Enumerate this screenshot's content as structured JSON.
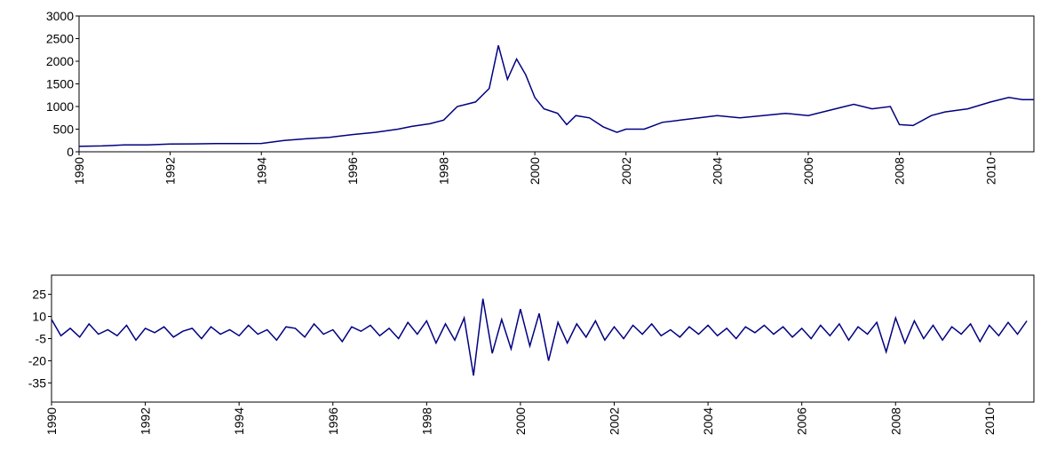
{
  "chart_data": [
    {
      "type": "line",
      "color": "#000080",
      "x": [
        1990,
        1990.5,
        1991,
        1991.5,
        1992,
        1992.5,
        1993,
        1993.5,
        1994,
        1994.5,
        1995,
        1995.5,
        1996,
        1996.5,
        1997,
        1997.3,
        1997.7,
        1998,
        1998.3,
        1998.7,
        1999,
        1999.2,
        1999.4,
        1999.6,
        1999.8,
        2000,
        2000.2,
        2000.5,
        2000.7,
        2000.9,
        2001.2,
        2001.5,
        2001.8,
        2002,
        2002.4,
        2002.8,
        2003.2,
        2003.6,
        2004,
        2004.5,
        2005,
        2005.5,
        2006,
        2006.4,
        2006.8,
        2007,
        2007.4,
        2007.8,
        2008,
        2008.3,
        2008.7,
        2009,
        2009.5,
        2010,
        2010.4,
        2010.7,
        2010.95
      ],
      "values": [
        120,
        130,
        150,
        150,
        170,
        175,
        180,
        180,
        185,
        250,
        290,
        320,
        380,
        430,
        500,
        560,
        620,
        700,
        1000,
        1100,
        1400,
        2350,
        1600,
        2050,
        1700,
        1200,
        950,
        850,
        600,
        800,
        750,
        550,
        430,
        500,
        500,
        650,
        700,
        750,
        800,
        750,
        800,
        850,
        800,
        900,
        1000,
        1050,
        950,
        1000,
        600,
        580,
        800,
        880,
        950,
        1100,
        1200,
        1150,
        1150
      ],
      "xlim": [
        1990,
        2010.95
      ],
      "xticks": [
        1990,
        1992,
        1994,
        1996,
        1998,
        2000,
        2002,
        2004,
        2006,
        2008,
        2010
      ],
      "ylim": [
        0,
        3000
      ],
      "yticks": [
        0,
        500,
        1000,
        1500,
        2000,
        2500,
        3000
      ]
    },
    {
      "type": "line",
      "color": "#000080",
      "x": [
        1990,
        1990.2,
        1990.4,
        1990.6,
        1990.8,
        1991,
        1991.2,
        1991.4,
        1991.6,
        1991.8,
        1992,
        1992.2,
        1992.4,
        1992.6,
        1992.8,
        1993,
        1993.2,
        1993.4,
        1993.6,
        1993.8,
        1994,
        1994.2,
        1994.4,
        1994.6,
        1994.8,
        1995,
        1995.2,
        1995.4,
        1995.6,
        1995.8,
        1996,
        1996.2,
        1996.4,
        1996.6,
        1996.8,
        1997,
        1997.2,
        1997.4,
        1997.6,
        1997.8,
        1998,
        1998.2,
        1998.4,
        1998.6,
        1998.8,
        1999,
        1999.2,
        1999.4,
        1999.6,
        1999.8,
        2000,
        2000.2,
        2000.4,
        2000.6,
        2000.8,
        2001,
        2001.2,
        2001.4,
        2001.6,
        2001.8,
        2002,
        2002.2,
        2002.4,
        2002.6,
        2002.8,
        2003,
        2003.2,
        2003.4,
        2003.6,
        2003.8,
        2004,
        2004.2,
        2004.4,
        2004.6,
        2004.8,
        2005,
        2005.2,
        2005.4,
        2005.6,
        2005.8,
        2006,
        2006.2,
        2006.4,
        2006.6,
        2006.8,
        2007,
        2007.2,
        2007.4,
        2007.6,
        2007.8,
        2008,
        2008.2,
        2008.4,
        2008.6,
        2008.8,
        2009,
        2009.2,
        2009.4,
        2009.6,
        2009.8,
        2010,
        2010.2,
        2010.4,
        2010.6,
        2010.8
      ],
      "values": [
        8,
        -3,
        2,
        -4,
        5,
        -2,
        1,
        -3,
        4,
        -6,
        2,
        -1,
        3,
        -4,
        0,
        2,
        -5,
        3,
        -2,
        1,
        -3,
        4,
        -2,
        1,
        -6,
        3,
        2,
        -4,
        5,
        -2,
        1,
        -7,
        3,
        0,
        4,
        -3,
        2,
        -5,
        6,
        -2,
        7,
        -8,
        5,
        -6,
        9,
        -30,
        22,
        -15,
        8,
        -12,
        15,
        -10,
        12,
        -20,
        6,
        -8,
        5,
        -4,
        7,
        -6,
        3,
        -5,
        4,
        -2,
        5,
        -3,
        1,
        -4,
        3,
        -2,
        4,
        -3,
        2,
        -5,
        3,
        -1,
        4,
        -2,
        3,
        -4,
        2,
        -5,
        4,
        -3,
        5,
        -6,
        3,
        -2,
        6,
        -14,
        9,
        -8,
        7,
        -5,
        4,
        -6,
        3,
        -2,
        5,
        -7,
        4,
        -3,
        6,
        -2,
        7
      ],
      "xlim": [
        1990,
        2010.95
      ],
      "xticks": [
        1990,
        1992,
        1994,
        1996,
        1998,
        2000,
        2002,
        2004,
        2006,
        2008,
        2010
      ],
      "ylim": [
        -48,
        38
      ],
      "yticks": [
        -35,
        -20,
        -5,
        10,
        25
      ]
    }
  ]
}
